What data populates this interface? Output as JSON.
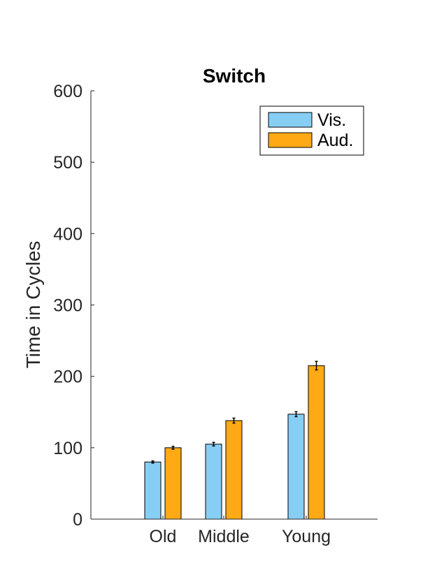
{
  "chart_data": {
    "type": "bar",
    "title": "Switch",
    "xlabel": "",
    "ylabel": "Time in Cycles",
    "categories": [
      "Old",
      "Middle",
      "Young"
    ],
    "ylim": [
      0,
      600
    ],
    "yticks": [
      0,
      100,
      200,
      300,
      400,
      500,
      600
    ],
    "series": [
      {
        "name": "Vis.",
        "color": "#87CEF5",
        "values": [
          80,
          105,
          147
        ],
        "errors": [
          1.5,
          2.5,
          3.5
        ]
      },
      {
        "name": "Aud.",
        "color": "#FFA914",
        "values": [
          100,
          138,
          215
        ],
        "errors": [
          2,
          3.5,
          6
        ]
      }
    ],
    "legend_position": "top-right",
    "grid": false
  }
}
